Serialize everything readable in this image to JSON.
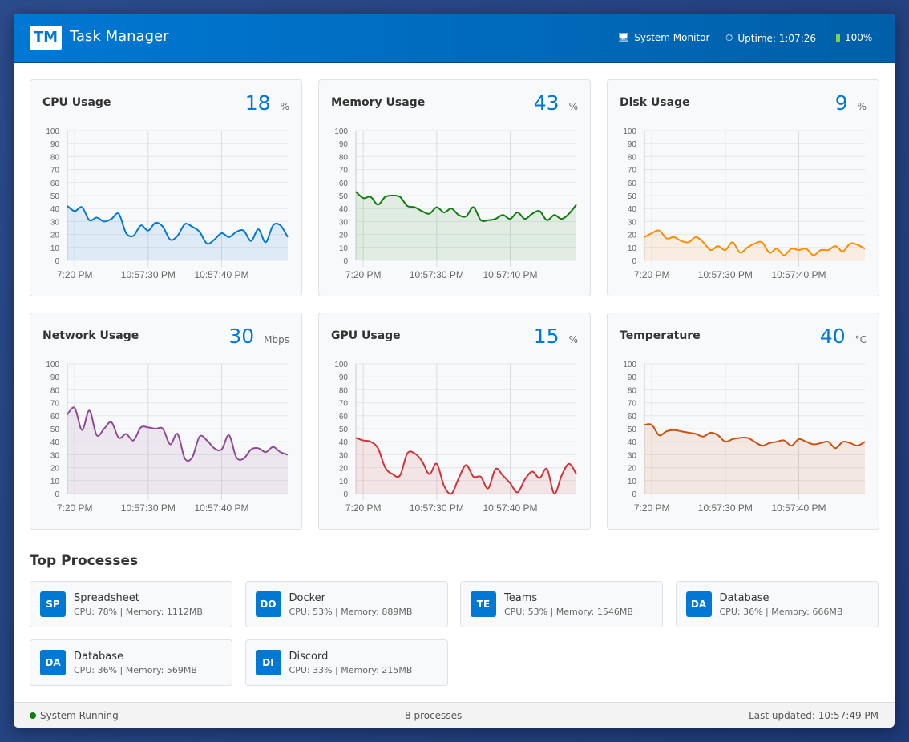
{
  "header": {
    "logo": "TM",
    "title": "Task Manager",
    "system_monitor": "System Monitor",
    "uptime": "Uptime: 1:07:26",
    "battery": "100%"
  },
  "time_ticks": [
    "7:20 PM",
    "10:57:30 PM",
    "10:57:40 PM"
  ],
  "y_ticks": [
    "100",
    "90",
    "80",
    "70",
    "60",
    "50",
    "40",
    "30",
    "20",
    "10",
    "0"
  ],
  "chart_data": [
    {
      "type": "area",
      "title": "CPU Usage",
      "value": "18",
      "unit": "%",
      "color": "#0078d4",
      "ylim": [
        0,
        100
      ],
      "grid": true,
      "x_start": "10:57:19",
      "x_end": "10:57:49",
      "values": [
        42,
        38,
        41,
        31,
        33,
        30,
        32,
        36,
        21,
        19,
        27,
        23,
        29,
        26,
        16,
        19,
        28,
        26,
        22,
        13,
        16,
        21,
        18,
        22,
        23,
        15,
        24,
        14,
        27,
        27,
        18
      ]
    },
    {
      "type": "area",
      "title": "Memory Usage",
      "value": "43",
      "unit": "%",
      "color": "#107c10",
      "ylim": [
        0,
        100
      ],
      "grid": true,
      "x_start": "10:57:19",
      "x_end": "10:57:49",
      "values": [
        53,
        48,
        49,
        43,
        49,
        50,
        49,
        42,
        41,
        38,
        36,
        41,
        37,
        40,
        35,
        34,
        41,
        31,
        31,
        32,
        35,
        32,
        37,
        32,
        36,
        38,
        31,
        35,
        32,
        36,
        43
      ]
    },
    {
      "type": "area",
      "title": "Disk Usage",
      "value": "9",
      "unit": "%",
      "color": "#ff8c00",
      "ylim": [
        0,
        100
      ],
      "grid": true,
      "x_start": "10:57:19",
      "x_end": "10:57:49",
      "values": [
        18,
        21,
        23,
        17,
        18,
        15,
        14,
        18,
        14,
        8,
        11,
        8,
        14,
        6,
        10,
        13,
        14,
        6,
        9,
        4,
        9,
        8,
        9,
        4,
        8,
        8,
        11,
        7,
        13,
        12,
        9
      ]
    },
    {
      "type": "area",
      "title": "Network Usage",
      "value": "30",
      "unit": "Mbps",
      "color": "#8e4a96",
      "ylim": [
        0,
        100
      ],
      "grid": true,
      "x_start": "10:57:19",
      "x_end": "10:57:49",
      "values": [
        61,
        66,
        49,
        64,
        45,
        50,
        55,
        43,
        46,
        41,
        51,
        51,
        50,
        50,
        38,
        46,
        27,
        28,
        44,
        41,
        35,
        34,
        45,
        28,
        27,
        34,
        35,
        32,
        36,
        32,
        30
      ]
    },
    {
      "type": "area",
      "title": "GPU Usage",
      "value": "15",
      "unit": "%",
      "color": "#d13438",
      "ylim": [
        0,
        100
      ],
      "grid": true,
      "x_start": "10:57:19",
      "x_end": "10:57:49",
      "values": [
        43,
        41,
        40,
        35,
        20,
        15,
        14,
        31,
        31,
        25,
        15,
        23,
        6,
        0,
        12,
        22,
        13,
        13,
        4,
        19,
        14,
        8,
        1,
        11,
        17,
        12,
        19,
        0,
        14,
        23,
        15
      ]
    },
    {
      "type": "area",
      "title": "Temperature",
      "value": "40",
      "unit": "°C",
      "color": "#ca5010",
      "ylim": [
        0,
        100
      ],
      "grid": true,
      "x_start": "10:57:19",
      "x_end": "10:57:49",
      "values": [
        53,
        53,
        45,
        48,
        49,
        48,
        47,
        46,
        44,
        47,
        45,
        40,
        42,
        43,
        43,
        40,
        37,
        39,
        40,
        41,
        37,
        42,
        40,
        38,
        39,
        40,
        35,
        40,
        39,
        37,
        40
      ]
    }
  ],
  "processes": {
    "title": "Top Processes",
    "items": [
      {
        "badge": "SP",
        "name": "Spreadsheet",
        "info": "CPU: 78% | Memory: 1112MB"
      },
      {
        "badge": "DO",
        "name": "Docker",
        "info": "CPU: 53% | Memory: 889MB"
      },
      {
        "badge": "TE",
        "name": "Teams",
        "info": "CPU: 53% | Memory: 1546MB"
      },
      {
        "badge": "DA",
        "name": "Database",
        "info": "CPU: 36% | Memory: 666MB"
      },
      {
        "badge": "DA",
        "name": "Database",
        "info": "CPU: 36% | Memory: 569MB"
      },
      {
        "badge": "DI",
        "name": "Discord",
        "info": "CPU: 33% | Memory: 215MB"
      }
    ]
  },
  "footer": {
    "status": "System Running",
    "count": "8 processes",
    "updated": "Last updated: 10:57:49 PM",
    "status_color": "#107c10"
  }
}
